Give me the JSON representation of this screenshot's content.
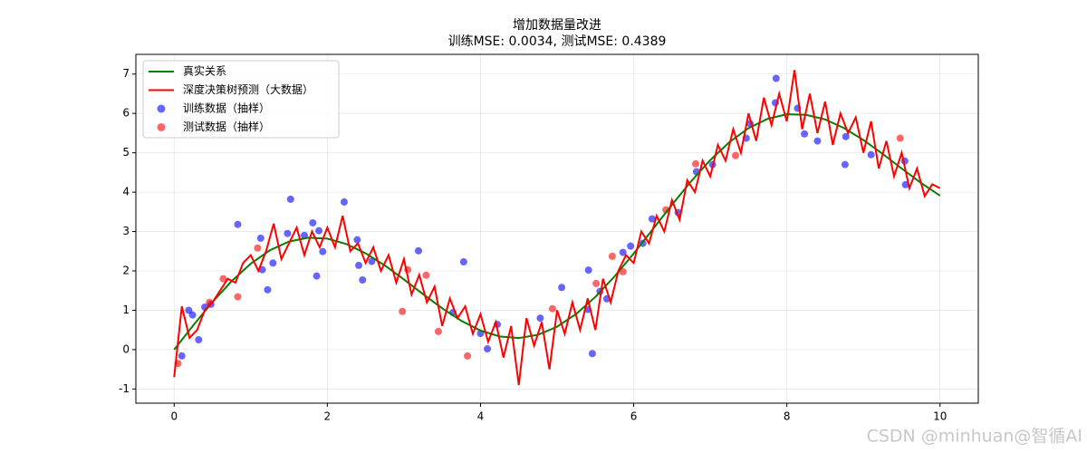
{
  "chart_data": {
    "type": "line",
    "title": "增加数据量改进",
    "subtitle": "训练MSE: 0.0034, 测试MSE: 0.4389",
    "watermark": "CSDN @minhuan@智循AI",
    "xlim": [
      -0.5,
      10.5
    ],
    "ylim": [
      -1.36,
      7.5
    ],
    "xticks": [
      0,
      2,
      4,
      6,
      8,
      10
    ],
    "yticks": [
      -1,
      0,
      1,
      2,
      3,
      4,
      5,
      6,
      7
    ],
    "grid": true,
    "legend": "upper-left",
    "series": [
      {
        "name": "真实关系",
        "type": "line",
        "color": "#008000",
        "x": [
          0,
          0.25,
          0.5,
          0.75,
          1,
          1.25,
          1.5,
          1.75,
          2,
          2.25,
          2.5,
          2.75,
          3,
          3.25,
          3.5,
          3.75,
          4,
          4.25,
          4.5,
          4.75,
          5,
          5.25,
          5.5,
          5.75,
          6,
          6.25,
          6.5,
          6.75,
          7,
          7.25,
          7.5,
          7.75,
          8,
          8.25,
          8.5,
          8.75,
          9,
          9.25,
          9.5,
          9.75,
          10
        ],
        "values": [
          0,
          0.62,
          1.209,
          1.738,
          2.183,
          2.523,
          2.745,
          2.843,
          2.819,
          2.681,
          2.447,
          2.138,
          1.782,
          1.408,
          1.048,
          0.732,
          0.486,
          0.335,
          0.295,
          0.376,
          0.582,
          0.907,
          1.339,
          1.859,
          2.441,
          3.059,
          3.68,
          4.275,
          4.814,
          5.271,
          5.626,
          5.864,
          5.979,
          5.964,
          5.847,
          5.624,
          5.324,
          4.974,
          4.6,
          4.236,
          3.912
        ]
      },
      {
        "name": "深度决策树预测（大数据）",
        "type": "line",
        "color": "#ff0000",
        "x": [
          0,
          0.1,
          0.2,
          0.3,
          0.4,
          0.5,
          0.6,
          0.7,
          0.8,
          0.9,
          1,
          1.1,
          1.2,
          1.3,
          1.4,
          1.5,
          1.6,
          1.7,
          1.8,
          1.9,
          2,
          2.1,
          2.2,
          2.3,
          2.4,
          2.5,
          2.6,
          2.7,
          2.8,
          2.9,
          3,
          3.1,
          3.2,
          3.3,
          3.4,
          3.5,
          3.6,
          3.7,
          3.8,
          3.9,
          4,
          4.1,
          4.2,
          4.3,
          4.4,
          4.5,
          4.6,
          4.7,
          4.8,
          4.9,
          5,
          5.1,
          5.2,
          5.3,
          5.4,
          5.5,
          5.6,
          5.7,
          5.8,
          5.9,
          6,
          6.1,
          6.2,
          6.3,
          6.4,
          6.5,
          6.6,
          6.7,
          6.8,
          6.9,
          7,
          7.1,
          7.2,
          7.3,
          7.4,
          7.5,
          7.6,
          7.7,
          7.8,
          7.9,
          8,
          8.1,
          8.2,
          8.3,
          8.4,
          8.5,
          8.6,
          8.7,
          8.8,
          8.9,
          9,
          9.1,
          9.2,
          9.3,
          9.4,
          9.5,
          9.6,
          9.7,
          9.8,
          9.9,
          10
        ],
        "values": [
          -0.7,
          1.1,
          0.3,
          0.5,
          1.0,
          1.2,
          1.5,
          1.8,
          1.7,
          2.2,
          2.4,
          2.0,
          2.5,
          3.2,
          2.3,
          2.7,
          3.1,
          2.4,
          3.0,
          2.6,
          3.1,
          2.6,
          3.4,
          2.5,
          2.7,
          2.2,
          2.6,
          2.0,
          2.4,
          1.7,
          2.3,
          1.4,
          1.9,
          1.2,
          1.6,
          0.6,
          1.3,
          0.8,
          1.1,
          0.4,
          0.9,
          0.2,
          0.7,
          -0.2,
          0.6,
          -0.9,
          0.8,
          0.1,
          0.7,
          -0.5,
          1.0,
          0.4,
          1.2,
          0.5,
          1.3,
          0.5,
          1.8,
          1.2,
          2.0,
          2.4,
          2.2,
          3.0,
          2.7,
          3.4,
          3.0,
          3.8,
          3.3,
          4.3,
          4.0,
          4.8,
          4.4,
          5.2,
          4.8,
          5.6,
          5.0,
          6.0,
          5.3,
          6.4,
          5.7,
          6.5,
          5.8,
          7.1,
          5.6,
          6.5,
          5.5,
          6.3,
          5.2,
          6.0,
          5.5,
          5.9,
          5.0,
          5.8,
          4.6,
          5.3,
          4.4,
          5.0,
          4.1,
          4.6,
          3.9,
          4.2,
          4.1
        ]
      },
      {
        "name": "训练数据（抽样）",
        "type": "scatter",
        "color": "#0000ff",
        "x": [
          0.1,
          0.19,
          0.24,
          0.32,
          0.4,
          0.48,
          0.83,
          1.13,
          1.15,
          1.22,
          1.29,
          1.48,
          1.52,
          1.7,
          1.81,
          1.86,
          1.89,
          1.94,
          2.22,
          2.39,
          2.41,
          2.46,
          2.58,
          3.19,
          3.64,
          3.78,
          4.0,
          4.09,
          4.22,
          4.78,
          5.06,
          5.4,
          5.41,
          5.46,
          5.56,
          5.65,
          5.86,
          5.96,
          6.12,
          6.24,
          6.58,
          6.82,
          7.03,
          7.47,
          7.52,
          7.85,
          7.86,
          8.14,
          8.23,
          8.4,
          8.76,
          8.77,
          9.1,
          9.54,
          9.55
        ],
        "values": [
          -0.16,
          1.0,
          0.88,
          0.25,
          1.08,
          1.15,
          3.18,
          2.83,
          2.03,
          1.52,
          2.2,
          2.95,
          3.82,
          2.9,
          3.22,
          1.87,
          3.02,
          2.49,
          3.75,
          2.79,
          2.14,
          1.77,
          2.24,
          2.51,
          0.94,
          2.23,
          0.41,
          0.02,
          0.64,
          0.8,
          1.58,
          1.02,
          2.02,
          -0.1,
          1.48,
          1.29,
          2.47,
          2.63,
          2.7,
          3.32,
          3.48,
          4.52,
          4.7,
          5.37,
          5.74,
          6.27,
          6.89,
          6.13,
          5.48,
          5.3,
          4.7,
          5.41,
          4.95,
          4.79,
          4.19
        ]
      },
      {
        "name": "测试数据（抽样）",
        "type": "scatter",
        "color": "#ff0000",
        "x": [
          0.05,
          0.46,
          0.64,
          0.83,
          1.09,
          2.98,
          3.05,
          3.29,
          3.45,
          3.83,
          4.94,
          5.51,
          5.72,
          5.86,
          6.42,
          6.81,
          7.33,
          9.48
        ],
        "values": [
          -0.35,
          1.2,
          1.8,
          1.34,
          2.58,
          0.97,
          2.03,
          1.89,
          0.46,
          -0.16,
          1.04,
          1.68,
          2.37,
          1.98,
          3.55,
          4.72,
          4.93,
          5.37
        ]
      }
    ]
  }
}
